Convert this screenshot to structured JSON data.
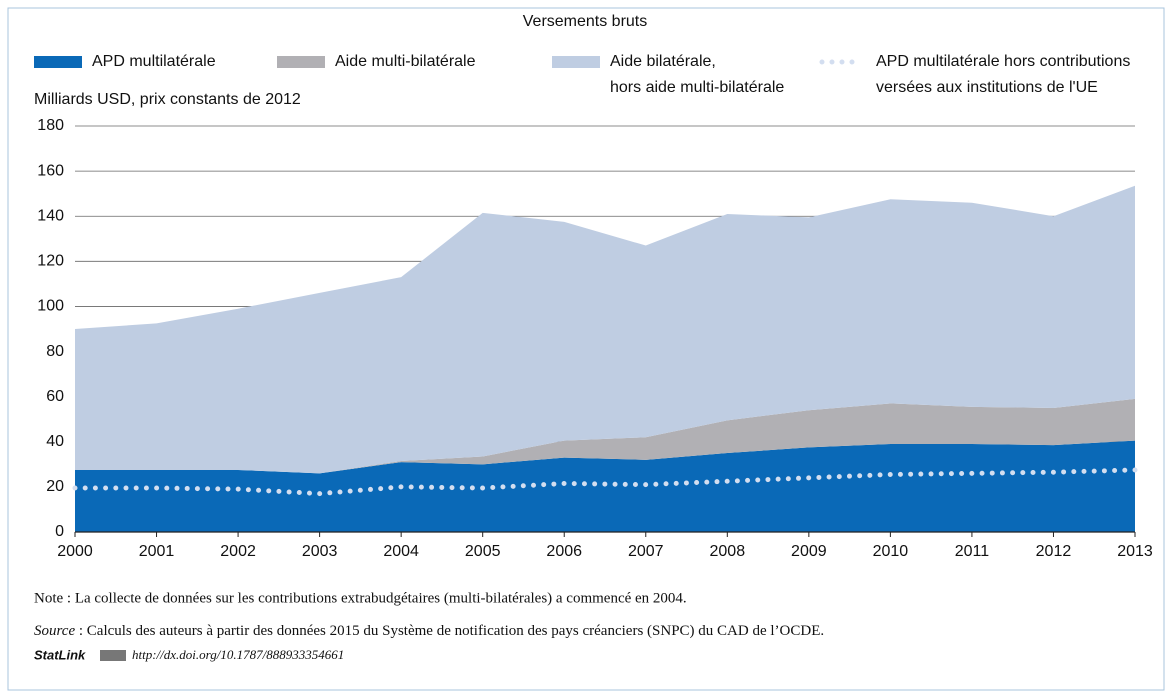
{
  "chart_data": {
    "type": "stacked_area",
    "title": "Versements bruts",
    "y_label": "Milliards USD, prix constants de 2012",
    "x": [
      2000,
      2001,
      2002,
      2003,
      2004,
      2005,
      2006,
      2007,
      2008,
      2009,
      2010,
      2011,
      2012,
      2013
    ],
    "xlim": [
      2000,
      2013
    ],
    "xticks": [
      2000,
      2001,
      2002,
      2003,
      2004,
      2005,
      2006,
      2007,
      2008,
      2009,
      2010,
      2011,
      2012,
      2013
    ],
    "ylim": [
      0,
      180
    ],
    "yticks": [
      0,
      20,
      40,
      60,
      80,
      100,
      120,
      140,
      160,
      180
    ],
    "grid": true,
    "series": [
      {
        "name": "APD multilatérale",
        "color": "#0a69b7",
        "values": [
          27.5,
          27.5,
          27.5,
          26,
          31,
          30,
          33,
          32,
          35,
          37.5,
          39,
          39,
          38.5,
          40.5
        ]
      },
      {
        "name": "Aide multi-bilatérale",
        "color": "#b1b0b4",
        "values": [
          0,
          0,
          0,
          0,
          0.5,
          3.5,
          7.5,
          10,
          14.5,
          16.5,
          18,
          16.5,
          16.5,
          18.5
        ]
      },
      {
        "name": "Aide bilatérale,\nhors aide multi-bilatérale",
        "color": "#bfcde2",
        "values": [
          62.5,
          65,
          71.5,
          80,
          81.5,
          108,
          97,
          85,
          91.5,
          85.5,
          90.5,
          90.5,
          85,
          94.5
        ]
      },
      {
        "name": "APD multilatérale hors contributions\nversées aux institutions de l'UE",
        "color": "#d3def0",
        "line_style": "dotted",
        "values": [
          19.5,
          19.5,
          19,
          17,
          20,
          19.5,
          21.5,
          21,
          22.5,
          24,
          25.5,
          26,
          26.5,
          27.5
        ]
      }
    ],
    "note": "Note : La collecte de données sur les contributions extrabudgétaires (multi-bilatérales) a commencé en 2004.",
    "source_label": "Source",
    "source_text": " : Calculs des auteurs à partir des données 2015 du Système de notification des pays créanciers (SNPC) du CAD de l’OCDE.",
    "statlink": "StatLink",
    "url": "http://dx.doi.org/10.1787/888933354661"
  }
}
